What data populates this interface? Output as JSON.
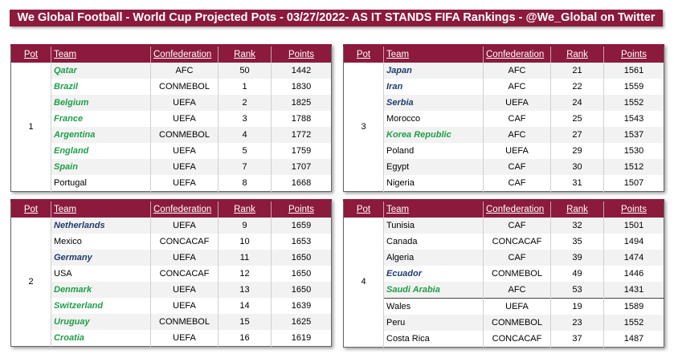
{
  "title": "We Global Football - World Cup Projected Pots - 03/27/2022- AS IT STANDS FIFA Rankings - @We_Global on Twitter",
  "headers": {
    "pot": "Pot",
    "team": "Team",
    "confederation": "Confederation",
    "rank": "Rank",
    "points": "Points"
  },
  "colors": {
    "header_bg": "#8b1a3d",
    "green_team": "#1e9e48",
    "blue_team": "#1f3b6e"
  },
  "pots": [
    {
      "number": "1",
      "teams": [
        {
          "team": "Qatar",
          "confederation": "AFC",
          "rank": "50",
          "points": "1442",
          "style": "green"
        },
        {
          "team": "Brazil",
          "confederation": "CONMEBOL",
          "rank": "1",
          "points": "1830",
          "style": "green"
        },
        {
          "team": "Belgium",
          "confederation": "UEFA",
          "rank": "2",
          "points": "1825",
          "style": "green"
        },
        {
          "team": "France",
          "confederation": "UEFA",
          "rank": "3",
          "points": "1788",
          "style": "green"
        },
        {
          "team": "Argentina",
          "confederation": "CONMEBOL",
          "rank": "4",
          "points": "1772",
          "style": "green"
        },
        {
          "team": "England",
          "confederation": "UEFA",
          "rank": "5",
          "points": "1759",
          "style": "green"
        },
        {
          "team": "Spain",
          "confederation": "UEFA",
          "rank": "7",
          "points": "1707",
          "style": "green"
        },
        {
          "team": "Portugal",
          "confederation": "UEFA",
          "rank": "8",
          "points": "1668",
          "style": "black"
        }
      ]
    },
    {
      "number": "3",
      "teams": [
        {
          "team": "Japan",
          "confederation": "AFC",
          "rank": "21",
          "points": "1561",
          "style": "blue"
        },
        {
          "team": "Iran",
          "confederation": "AFC",
          "rank": "22",
          "points": "1559",
          "style": "blue"
        },
        {
          "team": "Serbia",
          "confederation": "UEFA",
          "rank": "24",
          "points": "1552",
          "style": "blue"
        },
        {
          "team": "Morocco",
          "confederation": "CAF",
          "rank": "25",
          "points": "1543",
          "style": "black"
        },
        {
          "team": "Korea Republic",
          "confederation": "AFC",
          "rank": "27",
          "points": "1537",
          "style": "green"
        },
        {
          "team": "Poland",
          "confederation": "UEFA",
          "rank": "29",
          "points": "1530",
          "style": "black"
        },
        {
          "team": "Egypt",
          "confederation": "CAF",
          "rank": "30",
          "points": "1512",
          "style": "black"
        },
        {
          "team": "Nigeria",
          "confederation": "CAF",
          "rank": "31",
          "points": "1507",
          "style": "black"
        }
      ]
    },
    {
      "number": "2",
      "teams": [
        {
          "team": "Netherlands",
          "confederation": "UEFA",
          "rank": "9",
          "points": "1659",
          "style": "blue"
        },
        {
          "team": "Mexico",
          "confederation": "CONCACAF",
          "rank": "10",
          "points": "1653",
          "style": "black"
        },
        {
          "team": "Germany",
          "confederation": "UEFA",
          "rank": "11",
          "points": "1650",
          "style": "blue"
        },
        {
          "team": "USA",
          "confederation": "CONCACAF",
          "rank": "12",
          "points": "1650",
          "style": "black"
        },
        {
          "team": "Denmark",
          "confederation": "UEFA",
          "rank": "13",
          "points": "1650",
          "style": "green"
        },
        {
          "team": "Switzerland",
          "confederation": "UEFA",
          "rank": "14",
          "points": "1639",
          "style": "green"
        },
        {
          "team": "Uruguay",
          "confederation": "CONMEBOL",
          "rank": "15",
          "points": "1625",
          "style": "green"
        },
        {
          "team": "Croatia",
          "confederation": "UEFA",
          "rank": "16",
          "points": "1619",
          "style": "green"
        }
      ]
    },
    {
      "number": "4",
      "teams": [
        {
          "team": "Tunisia",
          "confederation": "CAF",
          "rank": "32",
          "points": "1501",
          "style": "black"
        },
        {
          "team": "Canada",
          "confederation": "CONCACAF",
          "rank": "35",
          "points": "1494",
          "style": "black"
        },
        {
          "team": "Algeria",
          "confederation": "CAF",
          "rank": "39",
          "points": "1474",
          "style": "black"
        },
        {
          "team": "Ecuador",
          "confederation": "CONMEBOL",
          "rank": "49",
          "points": "1446",
          "style": "blue"
        },
        {
          "team": "Saudi Arabia",
          "confederation": "AFC",
          "rank": "53",
          "points": "1431",
          "style": "green"
        },
        {
          "team": "Wales",
          "confederation": "UEFA",
          "rank": "19",
          "points": "1589",
          "style": "black",
          "separator_above": true
        },
        {
          "team": "Peru",
          "confederation": "CONMEBOL",
          "rank": "23",
          "points": "1552",
          "style": "black"
        },
        {
          "team": "Costa Rica",
          "confederation": "CONCACAF",
          "rank": "37",
          "points": "1487",
          "style": "black"
        }
      ]
    }
  ]
}
